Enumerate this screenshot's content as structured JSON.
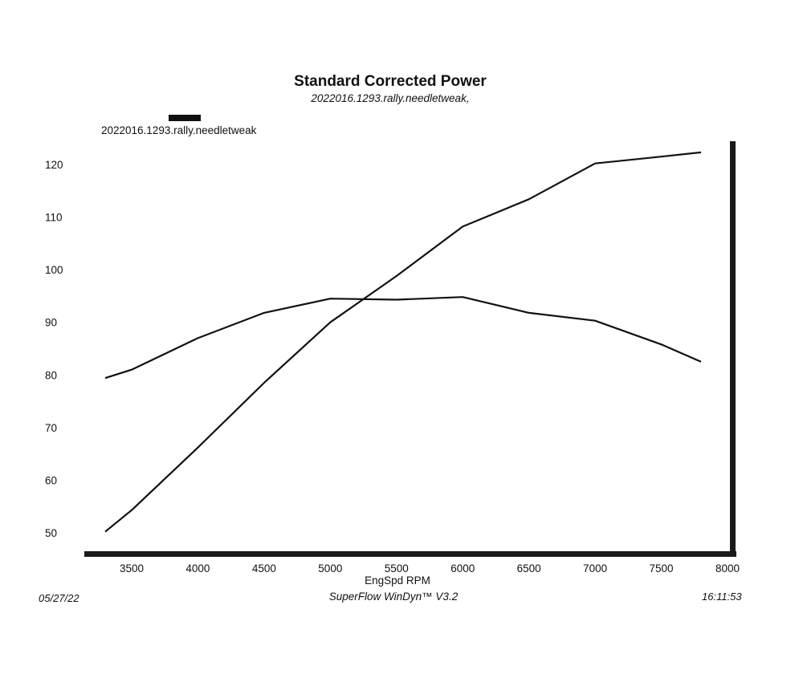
{
  "chart_data": {
    "type": "line",
    "title": "Standard Corrected Power",
    "subtitle": "2022016.1293.rally.needletweak,",
    "legend": [
      "2022016.1293.rally.needletweak"
    ],
    "legend_placement": "top-left",
    "xlabel": "EngSpd RPM",
    "ylabel": "",
    "xlim": [
      3200,
      8000
    ],
    "ylim": [
      47,
      125
    ],
    "x_ticks": [
      "3500",
      "4000",
      "4500",
      "5000",
      "5500",
      "6000",
      "6500",
      "7000",
      "7500",
      "8000"
    ],
    "y_ticks": [
      "50",
      "60",
      "70",
      "80",
      "90",
      "100",
      "110",
      "120"
    ],
    "grid": false,
    "series": [
      {
        "points": [
          [
            3300,
            50.2
          ],
          [
            3500,
            54.3
          ],
          [
            4000,
            66.2
          ],
          [
            4500,
            78.5
          ],
          [
            5000,
            90.0
          ],
          [
            5500,
            98.8
          ],
          [
            6000,
            108.2
          ],
          [
            6500,
            113.4
          ],
          [
            7000,
            120.2
          ],
          [
            7500,
            121.5
          ],
          [
            7800,
            122.3
          ]
        ]
      },
      {
        "points": [
          [
            3300,
            79.4
          ],
          [
            3500,
            81.0
          ],
          [
            4000,
            87.0
          ],
          [
            4500,
            91.8
          ],
          [
            5000,
            94.5
          ],
          [
            5500,
            94.3
          ],
          [
            6000,
            94.8
          ],
          [
            6500,
            91.8
          ],
          [
            7000,
            90.3
          ],
          [
            7500,
            85.8
          ],
          [
            7800,
            82.5
          ]
        ]
      }
    ]
  },
  "footer": {
    "date": "05/27/22",
    "software": "SuperFlow WinDyn™ V3.2",
    "time": "16:11:53"
  }
}
